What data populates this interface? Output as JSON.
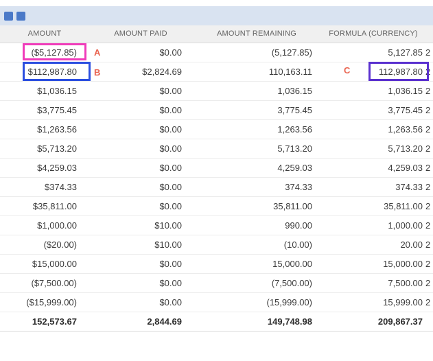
{
  "toolbar": {
    "icons": [
      "blue-tile-icon",
      "blue-tile-icon"
    ],
    "icon_color": "#4a79c8",
    "band_color": "#d9e3f1"
  },
  "table": {
    "headers": [
      "AMOUNT",
      "AMOUNT PAID",
      "AMOUNT REMAINING",
      "FORMULA (CURRENCY)"
    ],
    "rows": [
      {
        "amount": "($5,127.85)",
        "amount_paid": "$0.00",
        "amount_remaining": "(5,127.85)",
        "formula_currency": "5,127.85",
        "clipped": "2"
      },
      {
        "amount": "$112,987.80",
        "amount_paid": "$2,824.69",
        "amount_remaining": "110,163.11",
        "formula_currency": "112,987.80",
        "clipped": "2"
      },
      {
        "amount": "$1,036.15",
        "amount_paid": "$0.00",
        "amount_remaining": "1,036.15",
        "formula_currency": "1,036.15",
        "clipped": "2"
      },
      {
        "amount": "$3,775.45",
        "amount_paid": "$0.00",
        "amount_remaining": "3,775.45",
        "formula_currency": "3,775.45",
        "clipped": "2"
      },
      {
        "amount": "$1,263.56",
        "amount_paid": "$0.00",
        "amount_remaining": "1,263.56",
        "formula_currency": "1,263.56",
        "clipped": "2"
      },
      {
        "amount": "$5,713.20",
        "amount_paid": "$0.00",
        "amount_remaining": "5,713.20",
        "formula_currency": "5,713.20",
        "clipped": "2"
      },
      {
        "amount": "$4,259.03",
        "amount_paid": "$0.00",
        "amount_remaining": "4,259.03",
        "formula_currency": "4,259.03",
        "clipped": "2"
      },
      {
        "amount": "$374.33",
        "amount_paid": "$0.00",
        "amount_remaining": "374.33",
        "formula_currency": "374.33",
        "clipped": "2"
      },
      {
        "amount": "$35,811.00",
        "amount_paid": "$0.00",
        "amount_remaining": "35,811.00",
        "formula_currency": "35,811.00",
        "clipped": "2"
      },
      {
        "amount": "$1,000.00",
        "amount_paid": "$10.00",
        "amount_remaining": "990.00",
        "formula_currency": "1,000.00",
        "clipped": "2"
      },
      {
        "amount": "($20.00)",
        "amount_paid": "$10.00",
        "amount_remaining": "(10.00)",
        "formula_currency": "20.00",
        "clipped": "2"
      },
      {
        "amount": "$15,000.00",
        "amount_paid": "$0.00",
        "amount_remaining": "15,000.00",
        "formula_currency": "15,000.00",
        "clipped": "2"
      },
      {
        "amount": "($7,500.00)",
        "amount_paid": "$0.00",
        "amount_remaining": "(7,500.00)",
        "formula_currency": "7,500.00",
        "clipped": "2"
      },
      {
        "amount": "($15,999.00)",
        "amount_paid": "$0.00",
        "amount_remaining": "(15,999.00)",
        "formula_currency": "15,999.00",
        "clipped": "2"
      }
    ],
    "totals": {
      "amount": "152,573.67",
      "amount_paid": "2,844.69",
      "amount_remaining": "149,748.98",
      "formula_currency": "209,867.37",
      "clipped": ""
    }
  },
  "annotations": {
    "label_color": "#e96450",
    "a": {
      "label": "A",
      "box_color": "#f03cba"
    },
    "b": {
      "label": "B",
      "box_color": "#2b4ee0"
    },
    "c": {
      "label": "C",
      "box_color": "#5a30cf"
    }
  }
}
